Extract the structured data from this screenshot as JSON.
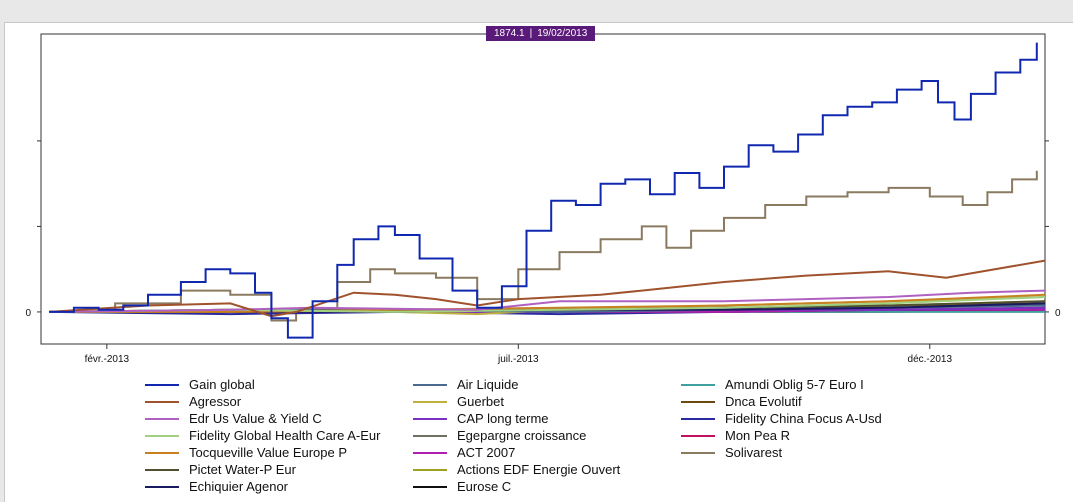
{
  "tooltip": {
    "value": "1874.1",
    "date": "19/02/2013"
  },
  "chart_data": {
    "type": "line",
    "title": "",
    "xlabel": "",
    "ylabel": "",
    "x_tick_labels": [
      "févr.-2013",
      "juil.-2013",
      "déc.-2013"
    ],
    "y_tick_labels_left": [
      "0"
    ],
    "y_tick_labels_right": [
      "0"
    ],
    "x_range_months": [
      0.7,
      12.9
    ],
    "y_range": [
      -15,
      130
    ],
    "grid": false,
    "legend_position": "bottom",
    "series": [
      {
        "name": "Gain global",
        "color": "#1028b0",
        "width": 2,
        "step": true,
        "points": [
          [
            0.8,
            0
          ],
          [
            1.1,
            2
          ],
          [
            1.4,
            1
          ],
          [
            1.7,
            3
          ],
          [
            2.0,
            8
          ],
          [
            2.4,
            14
          ],
          [
            2.7,
            20
          ],
          [
            3.0,
            18
          ],
          [
            3.3,
            9
          ],
          [
            3.5,
            -3
          ],
          [
            3.7,
            -12
          ],
          [
            4.0,
            5
          ],
          [
            4.3,
            22
          ],
          [
            4.5,
            34
          ],
          [
            4.8,
            40
          ],
          [
            5.0,
            36
          ],
          [
            5.3,
            25
          ],
          [
            5.7,
            10
          ],
          [
            6.0,
            2
          ],
          [
            6.3,
            12
          ],
          [
            6.6,
            38
          ],
          [
            6.9,
            52
          ],
          [
            7.2,
            50
          ],
          [
            7.5,
            60
          ],
          [
            7.8,
            62
          ],
          [
            8.1,
            55
          ],
          [
            8.4,
            65
          ],
          [
            8.7,
            58
          ],
          [
            9.0,
            68
          ],
          [
            9.3,
            78
          ],
          [
            9.6,
            75
          ],
          [
            9.9,
            83
          ],
          [
            10.2,
            92
          ],
          [
            10.5,
            96
          ],
          [
            10.8,
            98
          ],
          [
            11.1,
            104
          ],
          [
            11.4,
            108
          ],
          [
            11.6,
            98
          ],
          [
            11.8,
            90
          ],
          [
            12.0,
            102
          ],
          [
            12.3,
            112
          ],
          [
            12.6,
            118
          ],
          [
            12.8,
            126
          ]
        ]
      },
      {
        "name": "Agressor",
        "color": "#a0522d",
        "width": 2,
        "step": false,
        "points": [
          [
            0.8,
            0
          ],
          [
            2.0,
            3
          ],
          [
            3.0,
            4
          ],
          [
            3.5,
            -2
          ],
          [
            3.8,
            0
          ],
          [
            4.5,
            9
          ],
          [
            5.0,
            8
          ],
          [
            5.5,
            6
          ],
          [
            6.0,
            3
          ],
          [
            6.5,
            6
          ],
          [
            7.5,
            8
          ],
          [
            8.0,
            10
          ],
          [
            9.0,
            14
          ],
          [
            10.0,
            17
          ],
          [
            11.0,
            19
          ],
          [
            11.7,
            16
          ],
          [
            12.0,
            18
          ],
          [
            12.9,
            24
          ]
        ]
      },
      {
        "name": "Edr Us Value & Yield C",
        "color": "#b060c0",
        "width": 2,
        "step": false,
        "points": [
          [
            0.8,
            0
          ],
          [
            3.0,
            1
          ],
          [
            4.0,
            2
          ],
          [
            6.0,
            1
          ],
          [
            7.0,
            5
          ],
          [
            8.0,
            5
          ],
          [
            9.0,
            5
          ],
          [
            10.0,
            6
          ],
          [
            11.0,
            7
          ],
          [
            12.0,
            9
          ],
          [
            12.9,
            10
          ]
        ]
      },
      {
        "name": "Fidelity Global Health Care A-Eur",
        "color": "#a0d080",
        "width": 2,
        "step": false,
        "points": [
          [
            0.8,
            0
          ],
          [
            3.0,
            1
          ],
          [
            5.0,
            0
          ],
          [
            7.0,
            1
          ],
          [
            9.0,
            2
          ],
          [
            11.0,
            4
          ],
          [
            12.9,
            7
          ]
        ]
      },
      {
        "name": "Tocqueville Value Europe P",
        "color": "#c88020",
        "width": 2,
        "step": false,
        "points": [
          [
            0.8,
            0
          ],
          [
            3.0,
            0
          ],
          [
            5.0,
            1
          ],
          [
            7.0,
            2
          ],
          [
            9.0,
            3
          ],
          [
            11.0,
            5
          ],
          [
            12.9,
            8
          ]
        ]
      },
      {
        "name": "Pictet Water-P Eur",
        "color": "#505030",
        "width": 2,
        "step": false,
        "points": [
          [
            0.8,
            0
          ],
          [
            3.0,
            0
          ],
          [
            5.0,
            1
          ],
          [
            7.0,
            1
          ],
          [
            9.0,
            2
          ],
          [
            11.0,
            3
          ],
          [
            12.9,
            5
          ]
        ]
      },
      {
        "name": "Echiquier Agenor",
        "color": "#1a1a60",
        "width": 2,
        "step": false,
        "points": [
          [
            0.8,
            0
          ],
          [
            3.0,
            0
          ],
          [
            5.0,
            0
          ],
          [
            7.0,
            1
          ],
          [
            9.0,
            1
          ],
          [
            11.0,
            2
          ],
          [
            12.9,
            4
          ]
        ]
      },
      {
        "name": "Air Liquide",
        "color": "#4a6a90",
        "width": 2,
        "step": false,
        "points": [
          [
            0.8,
            0
          ],
          [
            3.0,
            1
          ],
          [
            5.0,
            1
          ],
          [
            7.0,
            0
          ],
          [
            9.0,
            1
          ],
          [
            11.0,
            2
          ],
          [
            12.9,
            3
          ]
        ]
      },
      {
        "name": "Guerbet",
        "color": "#c0b040",
        "width": 2,
        "step": false,
        "points": [
          [
            0.8,
            0
          ],
          [
            3.0,
            1
          ],
          [
            5.0,
            0
          ],
          [
            6.0,
            -1
          ],
          [
            7.0,
            1
          ],
          [
            9.0,
            3
          ],
          [
            11.0,
            5
          ],
          [
            12.9,
            7
          ]
        ]
      },
      {
        "name": "CAP long terme",
        "color": "#7a30c0",
        "width": 2,
        "step": false,
        "points": [
          [
            0.8,
            0
          ],
          [
            3.0,
            0
          ],
          [
            5.0,
            0
          ],
          [
            7.0,
            0
          ],
          [
            9.0,
            1
          ],
          [
            11.0,
            1
          ],
          [
            12.9,
            2
          ]
        ]
      },
      {
        "name": "Egepargne croissance",
        "color": "#707060",
        "width": 2,
        "step": false,
        "points": [
          [
            0.8,
            0
          ],
          [
            3.0,
            0
          ],
          [
            5.0,
            1
          ],
          [
            7.0,
            1
          ],
          [
            9.0,
            2
          ],
          [
            11.0,
            2
          ],
          [
            12.9,
            3
          ]
        ]
      },
      {
        "name": "ACT 2007",
        "color": "#b020b0",
        "width": 2,
        "step": false,
        "points": [
          [
            0.8,
            0
          ],
          [
            3.0,
            0
          ],
          [
            5.0,
            0
          ],
          [
            7.0,
            0
          ],
          [
            9.0,
            0
          ],
          [
            11.0,
            1
          ],
          [
            12.9,
            1
          ]
        ]
      },
      {
        "name": "Actions EDF Energie Ouvert",
        "color": "#a0a020",
        "width": 2,
        "step": false,
        "points": [
          [
            0.8,
            0
          ],
          [
            3.0,
            1
          ],
          [
            5.0,
            0
          ],
          [
            7.0,
            0
          ],
          [
            9.0,
            1
          ],
          [
            11.0,
            3
          ],
          [
            12.9,
            5
          ]
        ]
      },
      {
        "name": "Eurose C",
        "color": "#101010",
        "width": 2,
        "step": false,
        "points": [
          [
            0.8,
            0
          ],
          [
            3.0,
            0
          ],
          [
            5.0,
            0
          ],
          [
            7.0,
            0
          ],
          [
            9.0,
            0
          ],
          [
            11.0,
            1
          ],
          [
            12.9,
            1
          ]
        ]
      },
      {
        "name": "Amundi Oblig 5-7 Euro I",
        "color": "#40a0a0",
        "width": 2,
        "step": false,
        "points": [
          [
            0.8,
            0
          ],
          [
            3.0,
            0
          ],
          [
            5.0,
            0
          ],
          [
            7.0,
            0
          ],
          [
            9.0,
            0
          ],
          [
            11.0,
            0
          ],
          [
            12.9,
            0
          ]
        ]
      },
      {
        "name": "Dnca Evolutif",
        "color": "#6a4a10",
        "width": 2,
        "step": false,
        "points": [
          [
            0.8,
            0
          ],
          [
            3.0,
            1
          ],
          [
            5.0,
            1
          ],
          [
            7.0,
            1
          ],
          [
            9.0,
            2
          ],
          [
            11.0,
            3
          ],
          [
            12.9,
            4
          ]
        ]
      },
      {
        "name": "Fidelity China Focus A-Usd",
        "color": "#2a2aa0",
        "width": 2,
        "step": false,
        "points": [
          [
            0.8,
            0
          ],
          [
            3.0,
            -1
          ],
          [
            5.0,
            0
          ],
          [
            7.0,
            -1
          ],
          [
            9.0,
            0
          ],
          [
            11.0,
            1
          ],
          [
            12.9,
            2
          ]
        ]
      },
      {
        "name": "Mon Pea R",
        "color": "#c01060",
        "width": 2,
        "step": false,
        "points": [
          [
            0.8,
            0
          ],
          [
            3.0,
            0
          ],
          [
            5.0,
            0
          ],
          [
            7.0,
            0
          ],
          [
            9.0,
            0
          ],
          [
            11.0,
            0
          ],
          [
            12.9,
            1
          ]
        ]
      },
      {
        "name": "Solivarest",
        "color": "#8a7a60",
        "width": 2,
        "step": true,
        "points": [
          [
            0.8,
            0
          ],
          [
            1.6,
            4
          ],
          [
            2.4,
            10
          ],
          [
            3.0,
            8
          ],
          [
            3.5,
            -4
          ],
          [
            3.8,
            0
          ],
          [
            4.3,
            14
          ],
          [
            4.7,
            20
          ],
          [
            5.0,
            18
          ],
          [
            5.5,
            16
          ],
          [
            6.0,
            6
          ],
          [
            6.5,
            20
          ],
          [
            7.0,
            28
          ],
          [
            7.5,
            34
          ],
          [
            8.0,
            40
          ],
          [
            8.3,
            30
          ],
          [
            8.6,
            38
          ],
          [
            9.0,
            44
          ],
          [
            9.5,
            50
          ],
          [
            10.0,
            54
          ],
          [
            10.5,
            56
          ],
          [
            11.0,
            58
          ],
          [
            11.5,
            54
          ],
          [
            11.9,
            50
          ],
          [
            12.2,
            56
          ],
          [
            12.5,
            62
          ],
          [
            12.8,
            66
          ]
        ]
      }
    ]
  }
}
